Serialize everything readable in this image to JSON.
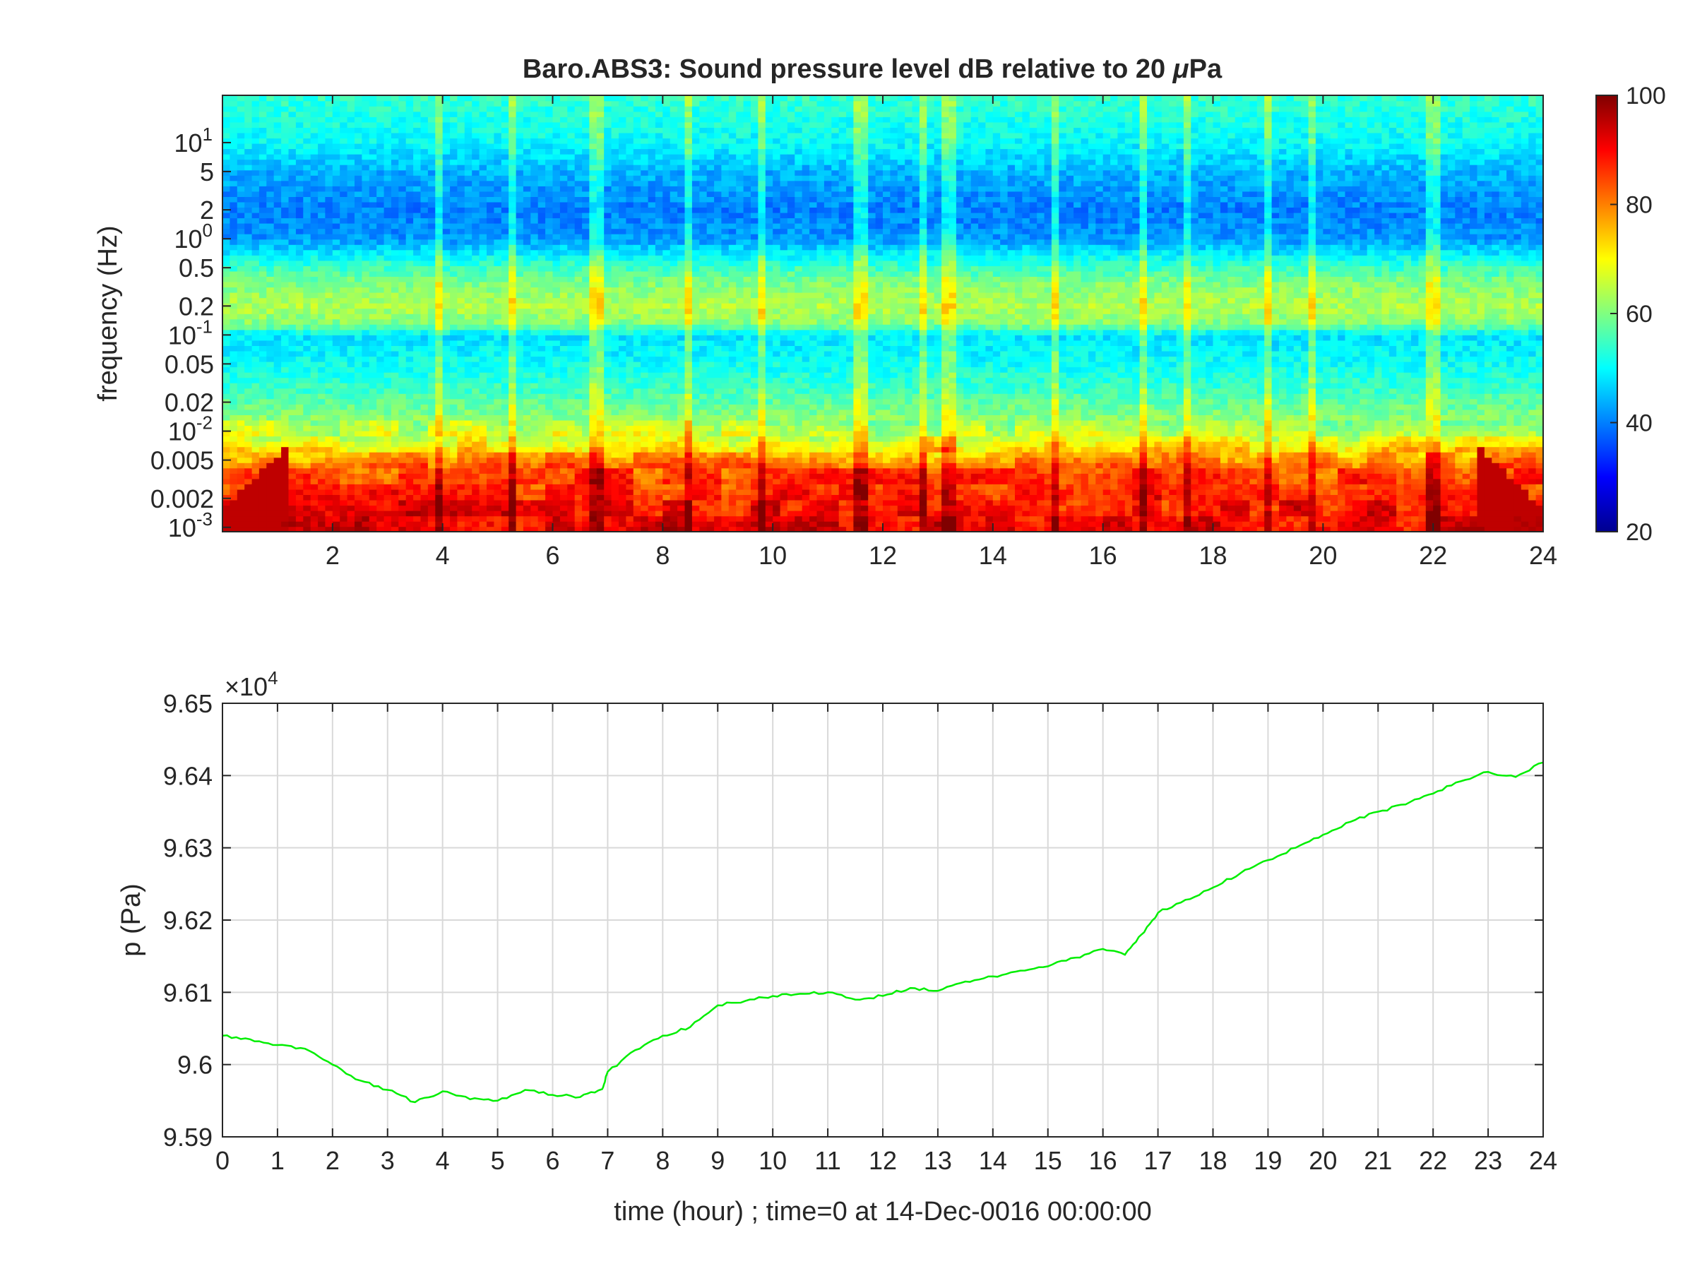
{
  "chart_data": [
    {
      "type": "heatmap",
      "title_main": "Baro.ABS3: Sound pressure level dB relative to 20 ",
      "title_mu": "μ",
      "title_tail": "Pa",
      "ylabel": "frequency (Hz)",
      "xlabel": "",
      "x_range": [
        0,
        24
      ],
      "x_ticks": [
        2,
        4,
        6,
        8,
        10,
        12,
        14,
        16,
        18,
        20,
        22,
        24
      ],
      "y_scale": "log",
      "y_range": [
        0.0009,
        31
      ],
      "y_ticks": [
        {
          "value": 0.001,
          "base": "10",
          "exp": "-3"
        },
        {
          "value": 0.002,
          "label": "0.002"
        },
        {
          "value": 0.005,
          "label": "0.005"
        },
        {
          "value": 0.01,
          "base": "10",
          "exp": "-2"
        },
        {
          "value": 0.02,
          "label": "0.02"
        },
        {
          "value": 0.05,
          "label": "0.05"
        },
        {
          "value": 0.1,
          "base": "10",
          "exp": "-1"
        },
        {
          "value": 0.2,
          "label": "0.2"
        },
        {
          "value": 0.5,
          "label": "0.5"
        },
        {
          "value": 1,
          "base": "10",
          "exp": "0"
        },
        {
          "value": 2,
          "label": "2"
        },
        {
          "value": 5,
          "label": "5"
        },
        {
          "value": 10,
          "base": "10",
          "exp": "1"
        }
      ],
      "colorbar": {
        "min": 20,
        "max": 100,
        "ticks": [
          20,
          40,
          60,
          80,
          100
        ],
        "colormap": "jet"
      },
      "level_profile_db": [
        {
          "freq": 0.001,
          "db": 92
        },
        {
          "freq": 0.002,
          "db": 88
        },
        {
          "freq": 0.004,
          "db": 84
        },
        {
          "freq": 0.006,
          "db": 75
        },
        {
          "freq": 0.009,
          "db": 66
        },
        {
          "freq": 0.015,
          "db": 60
        },
        {
          "freq": 0.03,
          "db": 54
        },
        {
          "freq": 0.06,
          "db": 50
        },
        {
          "freq": 0.1,
          "db": 48
        },
        {
          "freq": 0.13,
          "db": 60
        },
        {
          "freq": 0.2,
          "db": 64
        },
        {
          "freq": 0.35,
          "db": 60
        },
        {
          "freq": 0.6,
          "db": 52
        },
        {
          "freq": 1.0,
          "db": 42
        },
        {
          "freq": 2.0,
          "db": 40
        },
        {
          "freq": 5.0,
          "db": 44
        },
        {
          "freq": 10,
          "db": 50
        },
        {
          "freq": 31,
          "db": 54
        }
      ],
      "transient_times_hour": [
        3.9,
        5.3,
        6.8,
        8.5,
        9.8,
        11.6,
        12.7,
        13.2,
        15.1,
        16.7,
        17.5,
        19.0,
        19.8,
        22.0
      ]
    },
    {
      "type": "line",
      "ylabel": "p (Pa)",
      "xlabel": "time (hour) ; time=0 at 14-Dec-0016 00:00:00",
      "y_multiplier_base": "×10",
      "y_multiplier_exp": "4",
      "x_range": [
        0,
        24
      ],
      "y_range": [
        95900,
        96500
      ],
      "x_ticks": [
        0,
        1,
        2,
        3,
        4,
        5,
        6,
        7,
        8,
        9,
        10,
        11,
        12,
        13,
        14,
        15,
        16,
        17,
        18,
        19,
        20,
        21,
        22,
        23,
        24
      ],
      "y_ticks": [
        {
          "value": 95900,
          "label": "9.59"
        },
        {
          "value": 96000,
          "label": "9.6"
        },
        {
          "value": 96100,
          "label": "9.61"
        },
        {
          "value": 96200,
          "label": "9.62"
        },
        {
          "value": 96300,
          "label": "9.63"
        },
        {
          "value": 96400,
          "label": "9.64"
        },
        {
          "value": 96500,
          "label": "9.65"
        }
      ],
      "grid": true,
      "line_color": "#00ee00",
      "x": [
        0,
        0.5,
        1.0,
        1.5,
        2.0,
        2.5,
        3.0,
        3.5,
        4.0,
        4.5,
        5.0,
        5.5,
        6.0,
        6.5,
        6.9,
        7.0,
        7.5,
        8.0,
        8.5,
        9.0,
        9.5,
        10.0,
        10.5,
        11.0,
        11.5,
        12.0,
        12.5,
        13.0,
        13.5,
        14.0,
        14.5,
        15.0,
        15.5,
        16.0,
        16.4,
        16.7,
        17.0,
        17.5,
        18.0,
        18.5,
        19.0,
        19.5,
        20.0,
        20.5,
        21.0,
        21.5,
        22.0,
        22.5,
        23.0,
        23.5,
        24.0
      ],
      "y": [
        96040,
        96035,
        96027,
        96022,
        96000,
        95978,
        95965,
        95948,
        95963,
        95952,
        95950,
        95965,
        95958,
        95955,
        95966,
        95990,
        96020,
        96040,
        96052,
        96082,
        96088,
        96095,
        96098,
        96100,
        96090,
        96095,
        96106,
        96102,
        96115,
        96122,
        96130,
        96136,
        96148,
        96160,
        96152,
        96180,
        96210,
        96228,
        96245,
        96265,
        96283,
        96300,
        96318,
        96336,
        96350,
        96360,
        96375,
        96392,
        96405,
        96398,
        96418
      ]
    }
  ]
}
